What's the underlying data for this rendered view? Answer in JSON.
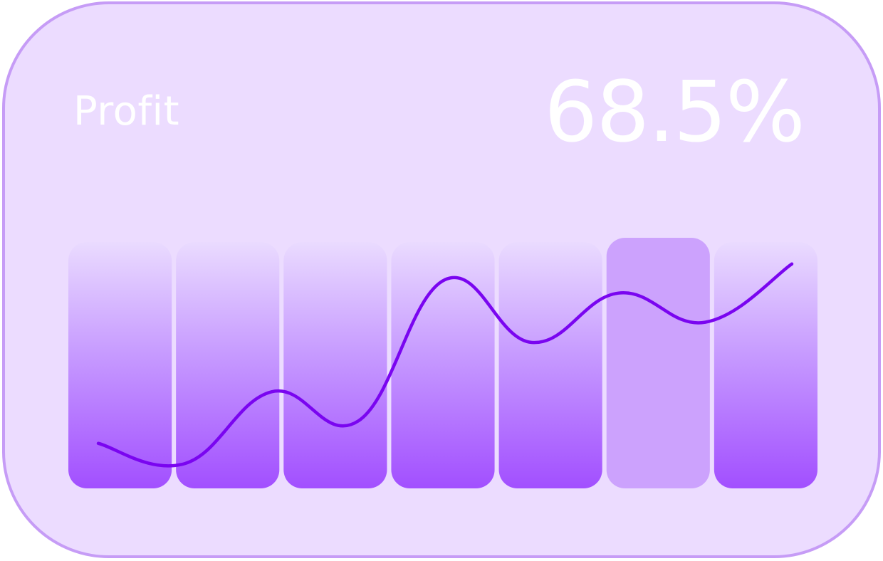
{
  "widget": {
    "title": "Profit",
    "value": "68.5%"
  },
  "colors": {
    "card_bg": "#ecdcff",
    "card_border": "#c69cf6",
    "bar_top": "#eadbff",
    "bar_bottom": "#a24fff",
    "bar_highlight": "#cca2fd",
    "line": "#7a05f0",
    "text": "#ffffff"
  },
  "chart_data": {
    "type": "bar",
    "bars": 7,
    "highlighted_index": 5,
    "line": {
      "values": [
        0.15,
        0.06,
        0.38,
        0.25,
        0.88,
        0.6,
        0.82,
        0.69,
        0.95
      ]
    }
  }
}
